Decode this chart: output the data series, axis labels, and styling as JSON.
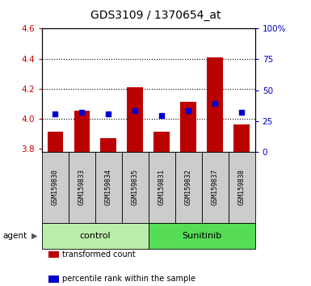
{
  "title": "GDS3109 / 1370654_at",
  "samples": [
    "GSM159830",
    "GSM159833",
    "GSM159834",
    "GSM159835",
    "GSM159831",
    "GSM159832",
    "GSM159837",
    "GSM159838"
  ],
  "red_values": [
    3.91,
    4.05,
    3.87,
    4.21,
    3.91,
    4.11,
    4.41,
    3.96
  ],
  "blue_values": [
    4.03,
    4.04,
    4.03,
    4.05,
    4.02,
    4.05,
    4.1,
    4.04
  ],
  "ylim_left": [
    3.78,
    4.6
  ],
  "ylim_right": [
    0,
    100
  ],
  "yticks_left": [
    3.8,
    4.0,
    4.2,
    4.4,
    4.6
  ],
  "yticks_right": [
    0,
    25,
    50,
    75,
    100
  ],
  "ytick_labels_left": [
    "3.8",
    "4.0",
    "4.2",
    "4.4",
    "4.6"
  ],
  "ytick_labels_right": [
    "0",
    "25",
    "50",
    "75",
    "100%"
  ],
  "bar_bottom": 3.78,
  "bar_color": "#bb0000",
  "dot_color": "#0000cc",
  "dot_size": 20,
  "group_labels": [
    "control",
    "Sunitinib"
  ],
  "group_colors": [
    "#bbeeaa",
    "#55dd55"
  ],
  "group_ranges": [
    [
      0,
      4
    ],
    [
      4,
      8
    ]
  ],
  "agent_label": "agent",
  "legend_items": [
    "transformed count",
    "percentile rank within the sample"
  ],
  "legend_colors": [
    "#bb0000",
    "#0000cc"
  ],
  "tick_color_left": "#cc0000",
  "tick_color_right": "#0000cc",
  "xticklabel_bg": "#cccccc",
  "grid_dotted_at": [
    4.0,
    4.2,
    4.4
  ],
  "bar_width": 0.6
}
